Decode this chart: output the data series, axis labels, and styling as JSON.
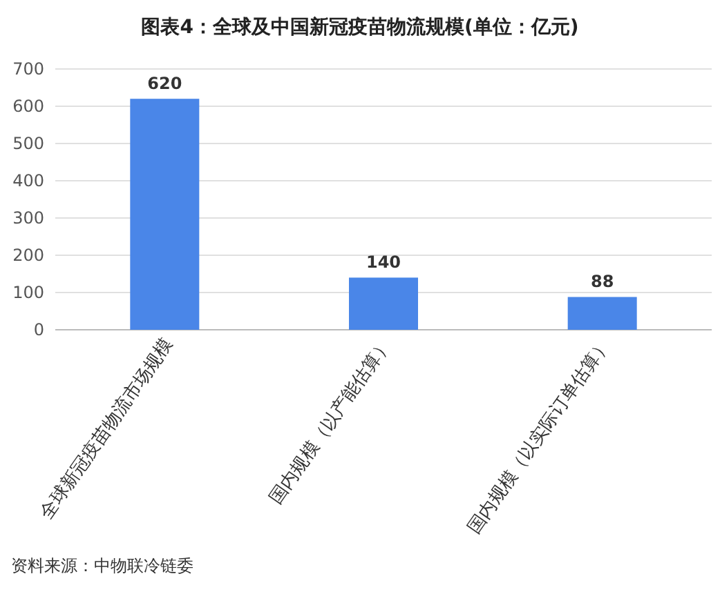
{
  "chart_data": {
    "type": "bar",
    "title": "图表4：全球及中国新冠疫苗物流规模(单位：亿元)",
    "categories": [
      "全球新冠疫苗物流市场规模",
      "国内规模（以产能估算）",
      "国内规模（以实际订单估算）"
    ],
    "values": [
      620,
      140,
      88
    ],
    "color": "#4a86e8",
    "ylim": [
      0,
      700
    ],
    "yticks": [
      0,
      100,
      200,
      300,
      400,
      500,
      600,
      700
    ],
    "grid": "y",
    "data_labels": true,
    "annotations": [
      "资料来源：中物联冷链委"
    ]
  }
}
